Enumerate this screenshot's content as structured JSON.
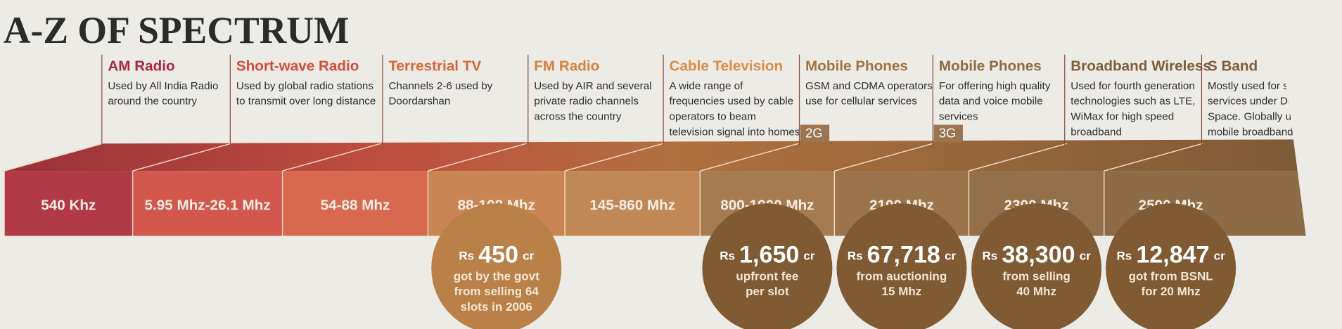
{
  "title": "A-Z OF SPECTRUM",
  "items": [
    {
      "name": "AM Radio",
      "description": [
        "Used by All India Radio",
        "around the country"
      ],
      "frequency": "540 Khz"
    },
    {
      "name": "Short-wave Radio",
      "description": [
        "Used by global radio stations",
        "to transmit over long distance"
      ],
      "frequency": "5.95 Mhz-26.1 Mhz"
    },
    {
      "name": "Terrestrial TV",
      "description": [
        "Channels 2-6 used by",
        "Doordarshan"
      ],
      "frequency": "54-88 Mhz"
    },
    {
      "name": "FM Radio",
      "description": [
        "Used by AIR and several",
        "private radio channels",
        "across the country"
      ],
      "frequency": "88-108 Mhz",
      "revenue": {
        "prefix": "Rs",
        "amount": "450",
        "unit": "cr",
        "note": [
          "got by the govt",
          "from selling 64",
          "slots in 2006"
        ]
      }
    },
    {
      "name": "Cable Television",
      "description": [
        "A wide range of",
        "frequencies used by cable",
        "operators to beam",
        "television signal into homes"
      ],
      "frequency": "145-860 Mhz"
    },
    {
      "name": "Mobile Phones",
      "description": [
        "GSM and CDMA operators",
        "use for cellular services"
      ],
      "badge": "2G",
      "frequency": "800-1900 Mhz",
      "revenue": {
        "prefix": "Rs",
        "amount": "1,650",
        "unit": "cr",
        "note": [
          "upfront fee",
          "per slot"
        ]
      }
    },
    {
      "name": "Mobile Phones",
      "description": [
        "For offering high quality",
        "data and voice mobile",
        "services"
      ],
      "badge": "3G",
      "frequency": "2100 Mhz",
      "revenue": {
        "prefix": "Rs",
        "amount": "67,718",
        "unit": "cr",
        "note": [
          "from auctioning",
          "15 Mhz"
        ]
      }
    },
    {
      "name": "Broadband Wireless",
      "description": [
        "Used for fourth generation",
        "technologies such as LTE,",
        "WiMax for high speed",
        "broadband"
      ],
      "frequency": "2300 Mhz",
      "revenue": {
        "prefix": "Rs",
        "amount": "38,300",
        "unit": "cr",
        "note": [
          "from selling",
          "40 Mhz"
        ]
      }
    },
    {
      "name": "S Band",
      "description": [
        "Mostly used for satellite",
        "services under Dept of",
        "Space. Globally used for",
        "mobile broadband."
      ],
      "frequency": "2500 Mhz",
      "revenue": {
        "prefix": "Rs",
        "amount": "12,847",
        "unit": "cr",
        "note": [
          "got from BSNL",
          "for 20 Mhz"
        ]
      }
    }
  ]
}
